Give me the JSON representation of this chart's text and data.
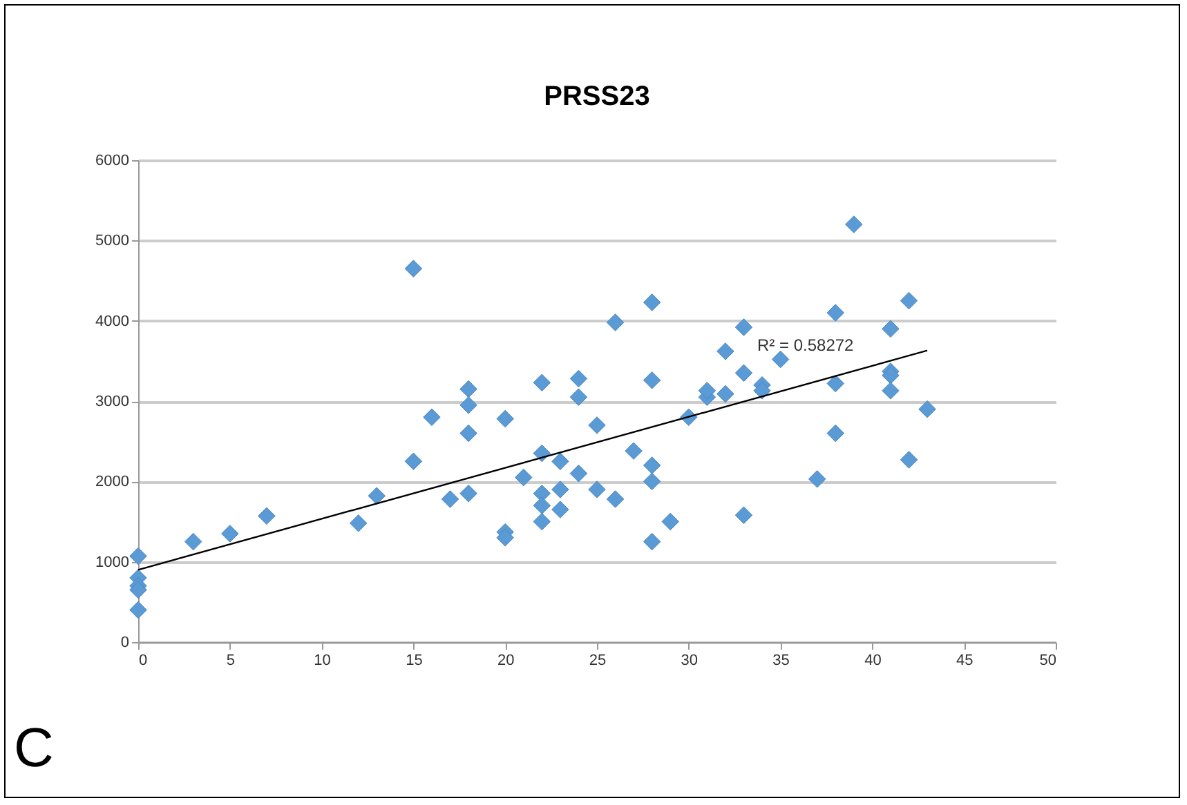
{
  "chart_data": {
    "type": "scatter",
    "title": "PRSS23",
    "xlim": [
      0,
      50
    ],
    "xticks": [
      0,
      5,
      10,
      15,
      20,
      25,
      30,
      35,
      40,
      45,
      50
    ],
    "ylim": [
      0,
      6000
    ],
    "yticks": [
      0,
      1000,
      2000,
      3000,
      4000,
      5000,
      6000
    ],
    "grid": "y",
    "marker": "diamond",
    "series": [
      {
        "color": "#5b9bd5",
        "x": [
          0,
          0,
          0,
          0,
          0,
          3,
          5,
          7,
          12,
          13,
          15,
          15,
          16,
          17,
          18,
          18,
          18,
          18,
          20,
          20,
          20,
          21,
          22,
          22,
          22,
          22,
          22,
          23,
          23,
          23,
          24,
          24,
          24,
          25,
          25,
          26,
          26,
          27,
          28,
          28,
          28,
          28,
          28,
          29,
          30,
          31,
          31,
          32,
          32,
          33,
          33,
          33,
          34,
          34,
          35,
          37,
          38,
          38,
          38,
          39,
          41,
          41,
          41,
          41,
          42,
          42,
          43
        ],
        "values": [
          1070,
          800,
          700,
          650,
          400,
          1250,
          1350,
          1570,
          1480,
          1820,
          4650,
          2250,
          2800,
          1780,
          3150,
          2950,
          2600,
          1850,
          2780,
          1370,
          1300,
          2050,
          3230,
          2350,
          1850,
          1700,
          1500,
          2250,
          1900,
          1650,
          3280,
          3050,
          2100,
          2700,
          1900,
          3980,
          1780,
          2380,
          4230,
          3260,
          2200,
          2000,
          1250,
          1500,
          2800,
          3050,
          3130,
          3620,
          3090,
          3920,
          3350,
          1580,
          3200,
          3130,
          3520,
          2030,
          4100,
          3220,
          2600,
          5200,
          3900,
          3370,
          3320,
          3130,
          4250,
          2270,
          2900
        ]
      },
      {
        "type": "line",
        "color": "#000000",
        "marker": "none",
        "x": [
          0,
          43
        ],
        "values": [
          900,
          3630
        ]
      }
    ],
    "annotations": [
      "R² = 0.58272",
      "C"
    ]
  }
}
